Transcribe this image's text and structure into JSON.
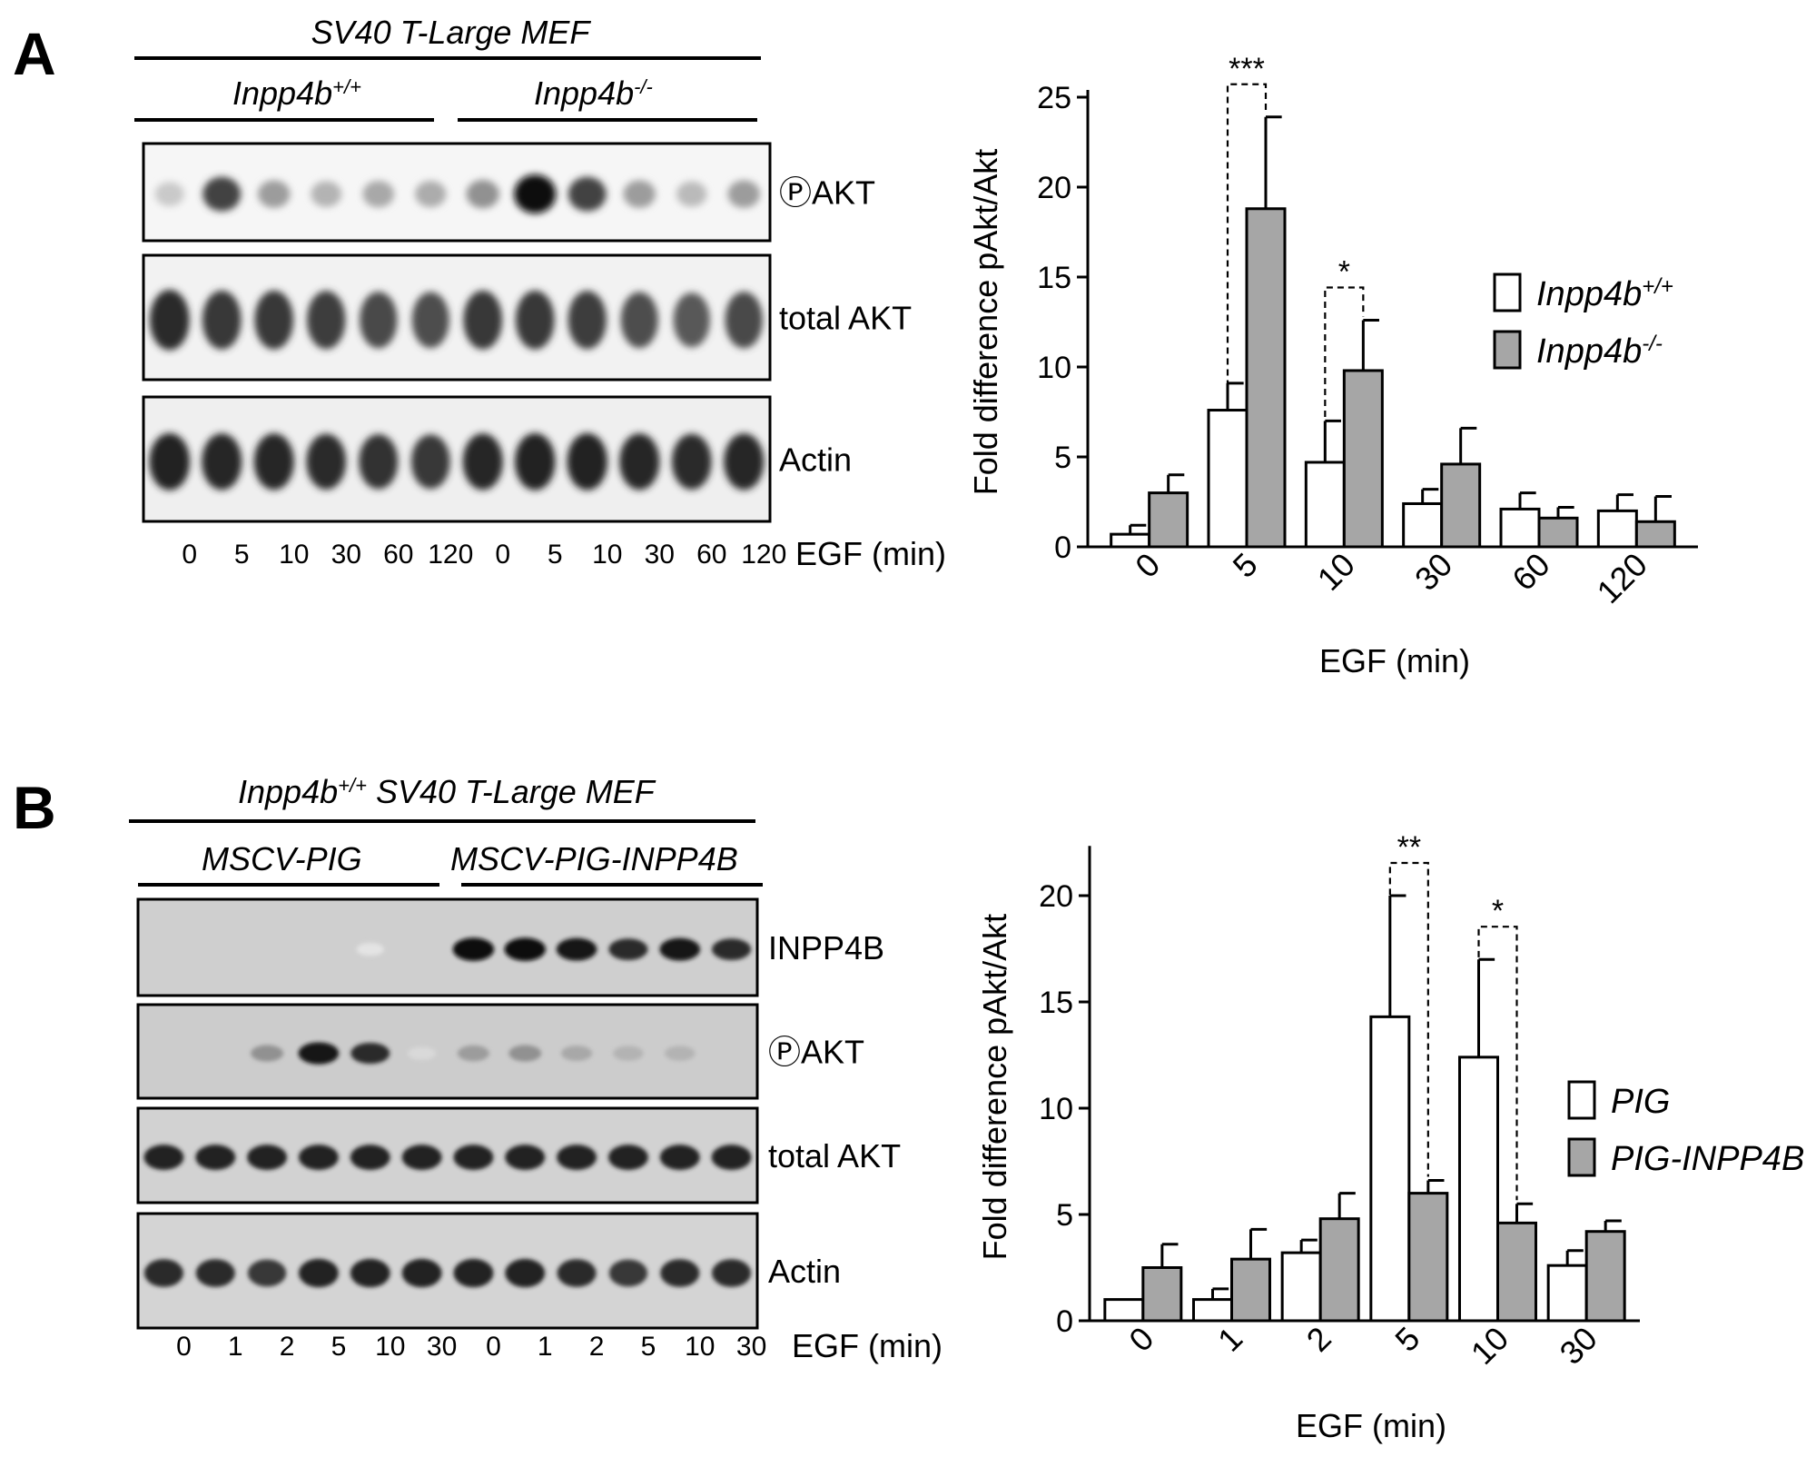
{
  "panelA": {
    "letter": "A",
    "blot": {
      "header": "SV40 T-Large MEF",
      "groups": [
        {
          "base": "Inpp4b",
          "sup": "+/+"
        },
        {
          "base": "Inpp4b",
          "sup": "-/-"
        }
      ],
      "rows": [
        {
          "label": "ⓅAKT",
          "intensity": [
            0.15,
            0.75,
            0.35,
            0.25,
            0.3,
            0.28,
            0.4,
            1.0,
            0.75,
            0.35,
            0.22,
            0.35
          ]
        },
        {
          "label": "total AKT",
          "intensity": [
            0.85,
            0.8,
            0.8,
            0.78,
            0.72,
            0.7,
            0.8,
            0.8,
            0.78,
            0.7,
            0.65,
            0.72
          ]
        },
        {
          "label": "Actin",
          "intensity": [
            0.9,
            0.88,
            0.88,
            0.85,
            0.82,
            0.8,
            0.88,
            0.9,
            0.9,
            0.88,
            0.85,
            0.88
          ]
        }
      ],
      "lanes": [
        "0",
        "5",
        "10",
        "30",
        "60",
        "120",
        "0",
        "5",
        "10",
        "30",
        "60",
        "120"
      ],
      "lanes_label": "EGF (min)"
    }
  },
  "panelB": {
    "letter": "B",
    "blot": {
      "header": "SV40 T-Large MEF",
      "header_prefix": {
        "base": "Inpp4b",
        "sup": "+/+"
      },
      "groups": [
        {
          "base": "MSCV-PIG",
          "sup": ""
        },
        {
          "base": "MSCV-PIG-INPP4B",
          "sup": ""
        }
      ],
      "rows": [
        {
          "label": "INPP4B",
          "intensity": [
            0,
            0,
            0,
            0,
            0.03,
            0,
            1.0,
            1.0,
            0.95,
            0.85,
            0.95,
            0.85
          ]
        },
        {
          "label": "ⓅAKT",
          "intensity": [
            0,
            0,
            0.4,
            0.95,
            0.85,
            0.08,
            0.35,
            0.4,
            0.3,
            0.25,
            0.25,
            0
          ]
        },
        {
          "label": "total AKT",
          "intensity": [
            0.9,
            0.9,
            0.9,
            0.9,
            0.9,
            0.9,
            0.9,
            0.9,
            0.9,
            0.9,
            0.9,
            0.9
          ]
        },
        {
          "label": "Actin",
          "intensity": [
            0.85,
            0.85,
            0.8,
            0.9,
            0.9,
            0.9,
            0.9,
            0.9,
            0.85,
            0.8,
            0.85,
            0.85
          ]
        }
      ],
      "lanes": [
        "0",
        "1",
        "2",
        "5",
        "10",
        "30",
        "0",
        "1",
        "2",
        "5",
        "10",
        "30"
      ],
      "lanes_label": "EGF (min)"
    }
  },
  "chart_data": [
    {
      "type": "bar",
      "title": "",
      "xlabel": "EGF (min)",
      "ylabel": "Fold difference pAkt/Akt",
      "ylim": [
        0,
        25
      ],
      "yticks": [
        0,
        5,
        10,
        15,
        20,
        25
      ],
      "categories": [
        "0",
        "5",
        "10",
        "30",
        "60",
        "120"
      ],
      "series": [
        {
          "name": "Inpp4b",
          "sup": "+/+",
          "color": "#ffffff",
          "values": [
            0.7,
            7.6,
            4.7,
            2.4,
            2.1,
            2.0
          ],
          "errors": [
            0.5,
            1.5,
            2.3,
            0.8,
            0.9,
            0.9
          ]
        },
        {
          "name": "Inpp4b",
          "sup": "-/-",
          "color": "#a6a6a6",
          "values": [
            3.0,
            18.8,
            9.8,
            4.6,
            1.6,
            1.4
          ],
          "errors": [
            1.0,
            5.1,
            2.8,
            2.0,
            0.6,
            1.4
          ]
        }
      ],
      "significance": [
        {
          "category": "5",
          "label": "***"
        },
        {
          "category": "10",
          "label": "*"
        }
      ],
      "legend": "right"
    },
    {
      "type": "bar",
      "title": "",
      "xlabel": "EGF (min)",
      "ylabel": "Fold difference pAkt/Akt",
      "ylim": [
        0,
        22
      ],
      "yticks": [
        0,
        5,
        10,
        15,
        20
      ],
      "categories": [
        "0",
        "1",
        "2",
        "5",
        "10",
        "30"
      ],
      "series": [
        {
          "name": "PIG",
          "sup": "",
          "color": "#ffffff",
          "values": [
            1.0,
            1.0,
            3.2,
            14.3,
            12.4,
            2.6
          ],
          "errors": [
            0,
            0.5,
            0.6,
            5.7,
            4.6,
            0.7
          ]
        },
        {
          "name": "PIG-INPP4B",
          "sup": "",
          "color": "#a6a6a6",
          "values": [
            2.5,
            2.9,
            4.8,
            6.0,
            4.6,
            4.2
          ],
          "errors": [
            1.1,
            1.4,
            1.2,
            0.6,
            0.9,
            0.5
          ]
        }
      ],
      "significance": [
        {
          "category": "5",
          "label": "**"
        },
        {
          "category": "10",
          "label": "*"
        }
      ],
      "legend": "right"
    }
  ]
}
